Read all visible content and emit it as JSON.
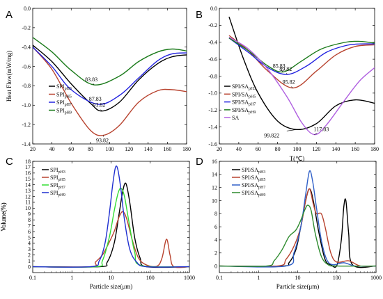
{
  "colors": {
    "black": "#000000",
    "red": "#b8432f",
    "blue": "#2222e0",
    "green": "#1a7a1a",
    "violet": "#b060e0",
    "bright_green": "#33dd33",
    "dark_blue": "#1f2fd0",
    "steel_blue": "#3060c8",
    "forest_green": "#2e8b2e"
  },
  "chart_data": [
    {
      "panel": "A",
      "type": "line",
      "xlabel": "",
      "ylabel": "Heat Flow(mW/mg)",
      "xlim": [
        20,
        180
      ],
      "ylim": [
        -1.4,
        0.0
      ],
      "xticks": [
        20,
        40,
        60,
        80,
        100,
        120,
        140,
        160,
        180
      ],
      "yticks": [
        0.0,
        -0.2,
        -0.4,
        -0.6,
        -0.8,
        -1.0,
        -1.2,
        -1.4
      ],
      "xtick_labels": [
        "20",
        "40",
        "60",
        "80",
        "100",
        "120",
        "140",
        "160",
        "180"
      ],
      "ytick_labels": [
        "0.0",
        "-0.2",
        "-0.4",
        "-0.6",
        "-0.8",
        "-1.0",
        "-1.2",
        "-1.4"
      ],
      "legend_position": "left",
      "series": [
        {
          "name": "SPIpH3",
          "base": "SPI",
          "sub": "pH3",
          "color": "#000000",
          "x": [
            20,
            40,
            60,
            80,
            91.82,
            110,
            130,
            150,
            165,
            180
          ],
          "y": [
            -0.38,
            -0.55,
            -0.78,
            -0.98,
            -1.06,
            -0.97,
            -0.74,
            -0.57,
            -0.5,
            -0.48
          ]
        },
        {
          "name": "SPIpH5",
          "base": "SPI",
          "sub": "pH5",
          "color": "#b8432f",
          "x": [
            20,
            40,
            60,
            80,
            93.82,
            110,
            130,
            150,
            165,
            180
          ],
          "y": [
            -0.4,
            -0.63,
            -0.98,
            -1.26,
            -1.31,
            -1.21,
            -0.97,
            -0.85,
            -0.84,
            -0.86
          ]
        },
        {
          "name": "SPIpH7",
          "base": "SPI",
          "sub": "pH7",
          "color": "#2222e0",
          "x": [
            20,
            40,
            60,
            87.83,
            110,
            130,
            150,
            165,
            180
          ],
          "y": [
            -0.4,
            -0.6,
            -0.84,
            -0.99,
            -0.9,
            -0.72,
            -0.54,
            -0.47,
            -0.46
          ]
        },
        {
          "name": "SPIpH9",
          "base": "SPI",
          "sub": "pH9",
          "color": "#1a7a1a",
          "x": [
            20,
            40,
            60,
            83.83,
            110,
            130,
            150,
            165,
            180
          ],
          "y": [
            -0.3,
            -0.45,
            -0.64,
            -0.79,
            -0.7,
            -0.55,
            -0.45,
            -0.42,
            -0.44
          ]
        }
      ],
      "annotations": [
        {
          "text": "83.83",
          "x": 83.83,
          "y": -0.79
        },
        {
          "text": "87.83",
          "x": 87.83,
          "y": -0.99
        },
        {
          "text": "91.82",
          "x": 91.82,
          "y": -1.06
        },
        {
          "text": "93.82",
          "x": 93.82,
          "y": -1.31
        }
      ]
    },
    {
      "panel": "B",
      "type": "line",
      "xlabel": "T(℃)",
      "ylabel": "",
      "xlim": [
        20,
        180
      ],
      "ylim": [
        -1.6,
        0.0
      ],
      "xticks": [
        20,
        40,
        60,
        80,
        100,
        120,
        140,
        160,
        180
      ],
      "yticks": [
        0.0,
        -0.2,
        -0.4,
        -0.6,
        -0.8,
        -1.0,
        -1.2,
        -1.4,
        -1.6
      ],
      "xtick_labels": [
        "20",
        "40",
        "60",
        "80",
        "100",
        "120",
        "140",
        "160",
        "180"
      ],
      "ytick_labels": [
        "0.0",
        "-0.2",
        "-0.4",
        "-0.6",
        "-0.8",
        "-1.0",
        "-1.2",
        "-1.4",
        "-1.6"
      ],
      "legend_position": "left",
      "series": [
        {
          "name": "SPI/SApH3",
          "base": "SPI/SA",
          "sub": "pH3",
          "color": "#000000",
          "x": [
            30,
            45,
            60,
            80,
            99.822,
            120,
            140,
            160,
            180
          ],
          "y": [
            -0.1,
            -0.6,
            -1.0,
            -1.33,
            -1.43,
            -1.36,
            -1.15,
            -1.08,
            -1.12
          ]
        },
        {
          "name": "SPI/SApH5",
          "base": "SPI/SA",
          "sub": "pH5",
          "color": "#b8432f",
          "x": [
            30,
            50,
            70,
            95.82,
            120,
            140,
            160,
            180
          ],
          "y": [
            -0.32,
            -0.5,
            -0.74,
            -0.94,
            -0.74,
            -0.55,
            -0.45,
            -0.43
          ]
        },
        {
          "name": "SPI/SApH7",
          "base": "SPI/SA",
          "sub": "pH7",
          "color": "#2222e0",
          "x": [
            30,
            50,
            70,
            89.82,
            110,
            130,
            150,
            165,
            180
          ],
          "y": [
            -0.35,
            -0.52,
            -0.7,
            -0.78,
            -0.68,
            -0.52,
            -0.44,
            -0.42,
            -0.42
          ]
        },
        {
          "name": "SPI/SApH9",
          "base": "SPI/SA",
          "sub": "pH9",
          "color": "#1a7a1a",
          "x": [
            30,
            50,
            70,
            85.83,
            105,
            125,
            150,
            165,
            180
          ],
          "y": [
            -0.35,
            -0.5,
            -0.68,
            -0.75,
            -0.62,
            -0.48,
            -0.4,
            -0.39,
            -0.41
          ]
        },
        {
          "name": "SA",
          "base": "SA",
          "sub": "",
          "color": "#b060e0",
          "x": [
            30,
            50,
            70,
            90,
            105,
            117.83,
            130,
            150,
            165,
            180
          ],
          "y": [
            -0.34,
            -0.48,
            -0.72,
            -1.05,
            -1.35,
            -1.49,
            -1.38,
            -1.07,
            -0.85,
            -0.7
          ]
        }
      ],
      "annotations": [
        {
          "text": "85.83",
          "x": 85.83,
          "y": -0.75
        },
        {
          "text": "89.82",
          "x": 89.82,
          "y": -0.78
        },
        {
          "text": "95.82",
          "x": 95.82,
          "y": -0.94
        },
        {
          "text": "117.83",
          "x": 117.83,
          "y": -1.49
        },
        {
          "text": "99.822",
          "x": 99.822,
          "y": -1.43
        }
      ]
    },
    {
      "panel": "C",
      "type": "line",
      "xscale": "log",
      "xlabel": "Particle size(μm)",
      "ylabel": "Volume(%)",
      "xlim": [
        0.1,
        1000
      ],
      "ylim": [
        -1,
        18
      ],
      "xticks": [
        0.1,
        1,
        10,
        100,
        1000
      ],
      "yticks": [
        0,
        1,
        2,
        3,
        4,
        5,
        6,
        7,
        8,
        9,
        10,
        11,
        12,
        13,
        14,
        15,
        16,
        17,
        18
      ],
      "xtick_labels": [
        "0.1",
        "1",
        "10",
        "100",
        "1000"
      ],
      "ytick_labels": [
        "0",
        "1",
        "2",
        "3",
        "4",
        "5",
        "6",
        "7",
        "8",
        "9",
        "10",
        "11",
        "12",
        "13",
        "14",
        "15",
        "16",
        "17",
        "18"
      ],
      "legend_position": "top-left",
      "series": [
        {
          "name": "SPIpH3",
          "base": "SPI",
          "sub": "pH3",
          "color": "#000000",
          "x": [
            0.1,
            5,
            8,
            12,
            16,
            20,
            24,
            30,
            40,
            55,
            80,
            1000
          ],
          "y": [
            0,
            0,
            0.8,
            4,
            9,
            13,
            14.2,
            11,
            5,
            1.5,
            0,
            0
          ]
        },
        {
          "name": "SPIpH5",
          "base": "SPI",
          "sub": "pH5",
          "color": "#b8432f",
          "x": [
            0.1,
            3,
            4,
            6,
            8,
            12,
            16,
            20,
            25,
            35,
            50,
            80,
            150,
            200,
            260,
            320,
            400,
            1000
          ],
          "y": [
            0,
            0,
            0.8,
            2,
            3.5,
            6,
            8.5,
            9.4,
            8.2,
            4.5,
            1.5,
            0.3,
            0.1,
            1.5,
            4.7,
            2,
            0,
            0
          ]
        },
        {
          "name": "SPIpH7",
          "base": "SPI",
          "sub": "pH7",
          "color": "#33dd33",
          "x": [
            0.1,
            4,
            6,
            9,
            12,
            15,
            18,
            22,
            28,
            40,
            60,
            1000
          ],
          "y": [
            0,
            0,
            1,
            5,
            9.5,
            12.5,
            13.4,
            12,
            8,
            2.5,
            0.2,
            0
          ]
        },
        {
          "name": "SPIpH9",
          "base": "SPI",
          "sub": "pH9",
          "color": "#1f2fd0",
          "x": [
            0.1,
            3,
            5,
            7,
            9,
            11,
            13,
            15,
            18,
            22,
            30,
            45,
            80,
            1000
          ],
          "y": [
            0,
            0,
            1,
            4,
            9,
            14,
            17,
            16.5,
            13,
            8,
            3,
            0.8,
            0,
            0
          ]
        }
      ]
    },
    {
      "panel": "D",
      "type": "line",
      "xscale": "log",
      "xlabel": "Particle size(μm)",
      "ylabel": "Volume(%)",
      "xlim": [
        0.1,
        1000
      ],
      "ylim": [
        -1,
        16
      ],
      "xticks": [
        0.1,
        1,
        10,
        100,
        1000
      ],
      "yticks": [
        0,
        2,
        4,
        6,
        8,
        10,
        12,
        14,
        16
      ],
      "xtick_labels": [
        "0.1",
        "1",
        "10",
        "100",
        "1000"
      ],
      "ytick_labels": [
        "0",
        "2",
        "4",
        "6",
        "8",
        "10",
        "12",
        "14",
        "16"
      ],
      "legend_position": "top-left",
      "series": [
        {
          "name": "SPI/SApH3",
          "base": "SPI/SA",
          "sub": "pH3",
          "color": "#000000",
          "x": [
            0.1,
            4,
            6,
            9,
            12,
            16,
            20,
            25,
            35,
            50,
            70,
            100,
            130,
            150,
            170,
            200,
            250,
            1000
          ],
          "y": [
            0,
            0,
            0.5,
            2.5,
            6,
            10,
            11.8,
            10,
            5,
            1,
            0.2,
            0.1,
            4,
            9,
            10,
            5,
            0.2,
            0
          ]
        },
        {
          "name": "SPI/SApH5",
          "base": "SPI/SA",
          "sub": "pH5",
          "color": "#b8432f",
          "x": [
            0.1,
            3,
            5,
            8,
            12,
            16,
            20,
            25,
            30,
            40,
            50,
            70,
            100,
            200,
            400,
            1000
          ],
          "y": [
            0,
            0,
            1,
            3,
            6,
            10,
            11.8,
            9.5,
            8,
            8,
            6,
            2,
            0.6,
            0.8,
            0,
            0
          ]
        },
        {
          "name": "SPI/SApH7",
          "base": "SPI/SA",
          "sub": "pH7",
          "color": "#3060c8",
          "x": [
            0.1,
            5,
            8,
            12,
            16,
            20,
            24,
            30,
            40,
            55,
            80,
            150,
            300,
            1000
          ],
          "y": [
            0,
            0,
            2,
            6,
            11,
            14.5,
            13,
            9,
            4,
            1,
            0.2,
            0.5,
            0,
            0
          ]
        },
        {
          "name": "SPI/SApH9",
          "base": "SPI/SA",
          "sub": "pH9",
          "color": "#2e8b2e",
          "x": [
            0.1,
            1.6,
            2.5,
            4,
            6,
            9,
            12,
            15,
            18,
            22,
            28,
            40,
            60,
            100,
            1000
          ],
          "y": [
            0,
            0,
            0.8,
            2.5,
            4.5,
            5.5,
            7,
            8.5,
            9.3,
            8.5,
            5,
            1.5,
            0.2,
            0,
            0
          ]
        }
      ]
    }
  ]
}
